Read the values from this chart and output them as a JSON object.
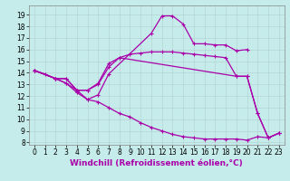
{
  "xlabel": "Windchill (Refroidissement éolien,°C)",
  "bg_color": "#c5ecea",
  "line_color": "#aa00aa",
  "marker": "+",
  "markersize": 3,
  "linewidth": 0.9,
  "xlim": [
    -0.5,
    23.5
  ],
  "ylim": [
    7.8,
    19.8
  ],
  "yticks": [
    8,
    9,
    10,
    11,
    12,
    13,
    14,
    15,
    16,
    17,
    18,
    19
  ],
  "xticks": [
    0,
    1,
    2,
    3,
    4,
    5,
    6,
    7,
    8,
    9,
    10,
    11,
    12,
    13,
    14,
    15,
    16,
    17,
    18,
    19,
    20,
    21,
    22,
    23
  ],
  "lines": [
    {
      "x": [
        0,
        1,
        2,
        3,
        4,
        5,
        6,
        7,
        11,
        12,
        13,
        14,
        15,
        16,
        17,
        18,
        19,
        20
      ],
      "y": [
        14.2,
        13.9,
        13.5,
        13.1,
        12.5,
        11.7,
        12.1,
        13.9,
        17.4,
        18.9,
        18.9,
        18.2,
        16.5,
        16.5,
        16.4,
        16.4,
        15.9,
        16.0
      ]
    },
    {
      "x": [
        0,
        2,
        3,
        4,
        5,
        6,
        7,
        8,
        19,
        20,
        21,
        22,
        23
      ],
      "y": [
        14.2,
        13.5,
        13.5,
        12.5,
        12.5,
        13.1,
        14.8,
        15.3,
        13.7,
        13.7,
        10.5,
        8.4,
        8.8
      ]
    },
    {
      "x": [
        0,
        2,
        3,
        4,
        5,
        6,
        7,
        8,
        9,
        10,
        11,
        12,
        13,
        14,
        15,
        16,
        17,
        18,
        19,
        20,
        21,
        22,
        23
      ],
      "y": [
        14.2,
        13.5,
        13.1,
        12.3,
        11.7,
        11.5,
        11.0,
        10.5,
        10.2,
        9.7,
        9.3,
        9.0,
        8.7,
        8.5,
        8.4,
        8.3,
        8.3,
        8.3,
        8.3,
        8.2,
        8.5,
        8.4,
        8.8
      ]
    },
    {
      "x": [
        0,
        2,
        3,
        4,
        5,
        6,
        7,
        8,
        9,
        10,
        11,
        12,
        13,
        14,
        15,
        16,
        17,
        18,
        19,
        20,
        21,
        22,
        23
      ],
      "y": [
        14.2,
        13.5,
        13.5,
        12.5,
        12.5,
        13.0,
        14.5,
        15.3,
        15.6,
        15.7,
        15.8,
        15.8,
        15.8,
        15.7,
        15.6,
        15.5,
        15.4,
        15.3,
        13.7,
        13.7,
        10.5,
        8.4,
        8.8
      ]
    }
  ],
  "grid_color": "#b0d0d0",
  "tick_fontsize": 5.5,
  "xlabel_fontsize": 6.5
}
